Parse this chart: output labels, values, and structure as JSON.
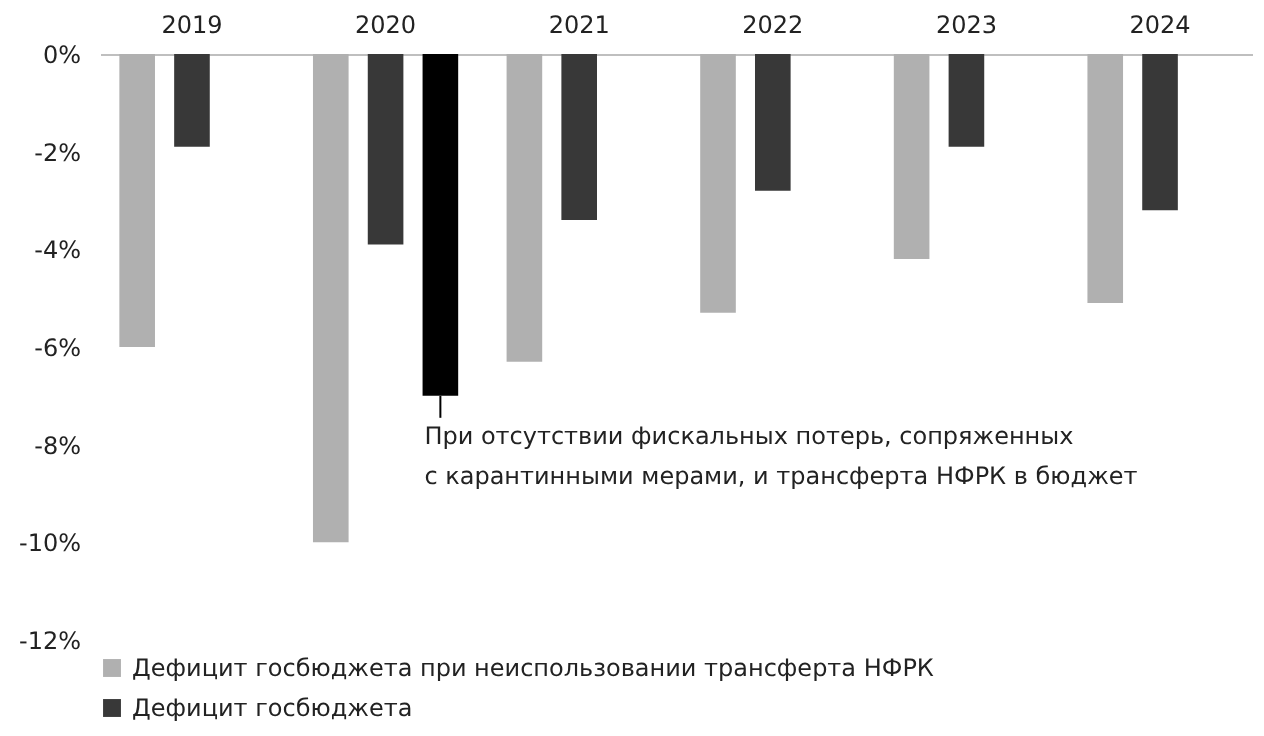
{
  "chart_data": {
    "type": "bar",
    "categories": [
      "2019",
      "2020",
      "2021",
      "2022",
      "2023",
      "2024"
    ],
    "series": [
      {
        "name": "Дефицит госбюджета при неиспользовании трансферта НФРК",
        "color": "#b0b0b0",
        "values": [
          -6.0,
          -10.0,
          -6.3,
          -5.3,
          -4.2,
          -5.1
        ]
      },
      {
        "name": "Дефицит госбюджета",
        "color": "#383838",
        "values": [
          -1.9,
          -3.9,
          -3.4,
          -2.8,
          -1.9,
          -3.2
        ]
      },
      {
        "color": "#000000",
        "values": [
          null,
          -7.0,
          null,
          null,
          null,
          null
        ]
      }
    ],
    "ylim": [
      -12,
      0
    ],
    "yticks": [
      {
        "value": 0,
        "label": "0%"
      },
      {
        "value": -2,
        "label": "-2%"
      },
      {
        "value": -4,
        "label": "-4%"
      },
      {
        "value": -6,
        "label": "-6%"
      },
      {
        "value": -8,
        "label": "-8%"
      },
      {
        "value": -10,
        "label": "-10%"
      },
      {
        "value": -12,
        "label": "-12%"
      }
    ],
    "grid": false,
    "legend": "bottom left",
    "annotations": [
      "При отсутствии фискальных потерь, сопряженных\nс карантинными мерами, и трансферта НФРК в бюджет"
    ]
  }
}
